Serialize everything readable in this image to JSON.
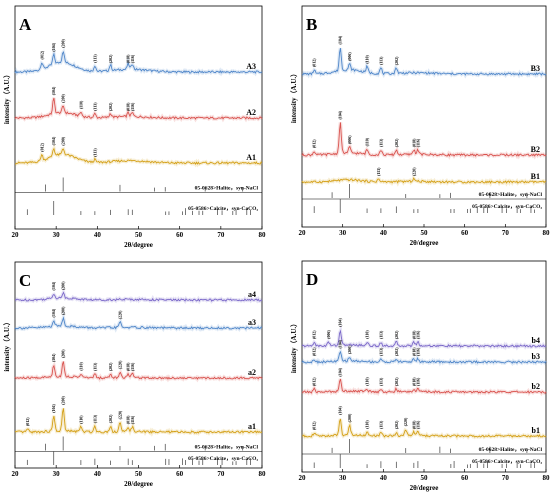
{
  "chart_data": [
    {
      "panel": "A",
      "type": "line",
      "xlabel": "2θ/degree",
      "ylabel": "intensity（A.U.）",
      "xlim": [
        20,
        80
      ],
      "xticks": [
        "20",
        "30",
        "40",
        "50",
        "60",
        "70",
        "80"
      ],
      "series": [
        {
          "name": "A3",
          "color": "#4f86c9",
          "broad_hump": 0.9,
          "peaks": [
            {
              "x": 26.5,
              "h": 0.35,
              "label": "(012)"
            },
            {
              "x": 29.4,
              "h": 0.5,
              "label": "(104)"
            },
            {
              "x": 31.7,
              "h": 0.6,
              "label": "(200)"
            },
            {
              "x": 39.4,
              "h": 0.3,
              "label": "(113)"
            },
            {
              "x": 43.2,
              "h": 0.3,
              "label": "(202)"
            },
            {
              "x": 47.5,
              "h": 0.3,
              "label": "(018)"
            },
            {
              "x": 48.5,
              "h": 0.3,
              "label": "(116)"
            }
          ]
        },
        {
          "name": "A2",
          "color": "#d9534f",
          "broad_hump": 0.5,
          "peaks": [
            {
              "x": 29.4,
              "h": 0.8,
              "label": "(104)"
            },
            {
              "x": 31.7,
              "h": 0.35,
              "label": "(200)"
            },
            {
              "x": 36.0,
              "h": 0.2,
              "label": "(110)"
            },
            {
              "x": 39.4,
              "h": 0.2,
              "label": "(113)"
            },
            {
              "x": 43.2,
              "h": 0.2,
              "label": "(202)"
            },
            {
              "x": 47.5,
              "h": 0.2,
              "label": "(018)"
            },
            {
              "x": 48.5,
              "h": 0.2,
              "label": "(116)"
            }
          ]
        },
        {
          "name": "A1",
          "color": "#d4a017",
          "broad_hump": 0.8,
          "peaks": [
            {
              "x": 26.5,
              "h": 0.3,
              "label": "(012)"
            },
            {
              "x": 29.4,
              "h": 0.4,
              "label": "(104)"
            },
            {
              "x": 31.7,
              "h": 0.3,
              "label": "(200)"
            },
            {
              "x": 39.4,
              "h": 0.15,
              "label": "(113)"
            }
          ]
        }
      ],
      "reference_patterns": [
        {
          "label": "05-0628>Halite，syn-NaCl",
          "lines": [
            27.4,
            31.7,
            45.5,
            53.9,
            56.5,
            66.2,
            75.3
          ]
        },
        {
          "label": "05-0586>Calcite，syn-CaCO₃",
          "lines": [
            23.0,
            29.4,
            36.0,
            39.4,
            43.2,
            47.5,
            48.5,
            56.6,
            57.4,
            60.7,
            61.4,
            63.1,
            64.7,
            65.6,
            69.2,
            70.3,
            72.9,
            73.7,
            76.3,
            77.2
          ]
        }
      ]
    },
    {
      "panel": "B",
      "type": "line",
      "xlabel": "2θ/degree",
      "ylabel": "intensity（A.U.）",
      "xlim": [
        20,
        80
      ],
      "xticks": [
        "20",
        "30",
        "40",
        "50",
        "60",
        "70",
        "80"
      ],
      "series": [
        {
          "name": "B3",
          "color": "#4f86c9",
          "broad_hump": 0.4,
          "peaks": [
            {
              "x": 23.0,
              "h": 0.2,
              "label": "(012)"
            },
            {
              "x": 29.4,
              "h": 1.2,
              "label": "(104)"
            },
            {
              "x": 31.7,
              "h": 0.3,
              "label": "(006)"
            },
            {
              "x": 36.0,
              "h": 0.3,
              "label": "(110)"
            },
            {
              "x": 39.4,
              "h": 0.3,
              "label": "(113)"
            },
            {
              "x": 43.2,
              "h": 0.3,
              "label": "(202)"
            }
          ]
        },
        {
          "name": "B2",
          "color": "#d9534f",
          "broad_hump": 0.2,
          "peaks": [
            {
              "x": 23.0,
              "h": 0.2,
              "label": "(012)"
            },
            {
              "x": 29.4,
              "h": 1.6,
              "label": "(104)"
            },
            {
              "x": 31.7,
              "h": 0.3,
              "label": "(006)"
            },
            {
              "x": 36.0,
              "h": 0.25,
              "label": "(110)"
            },
            {
              "x": 39.4,
              "h": 0.25,
              "label": "(113)"
            },
            {
              "x": 43.2,
              "h": 0.25,
              "label": "(202)"
            },
            {
              "x": 47.5,
              "h": 0.25,
              "label": "(018)"
            },
            {
              "x": 48.5,
              "h": 0.25,
              "label": "(116)"
            }
          ]
        },
        {
          "name": "B1",
          "color": "#d4a017",
          "broad_hump": 0.2,
          "peaks": [
            {
              "x": 38.8,
              "h": 0.15,
              "label": "(113)"
            },
            {
              "x": 47.5,
              "h": 0.15,
              "label": "(220)"
            }
          ]
        }
      ],
      "reference_patterns": [
        {
          "label": "05-0628>Halite，syn-NaCl",
          "lines": [
            27.4,
            31.7,
            45.5,
            53.9,
            56.5,
            66.2,
            75.3
          ]
        },
        {
          "label": "05-0586>Calcite，syn-CaCO₃",
          "lines": [
            23.0,
            29.4,
            36.0,
            39.4,
            43.2,
            47.5,
            48.5,
            56.6,
            57.4,
            60.7,
            61.4,
            63.1,
            64.7,
            65.6,
            69.2,
            70.3,
            72.9,
            73.7,
            76.3,
            77.2
          ]
        }
      ]
    },
    {
      "panel": "C",
      "type": "line",
      "xlabel": "2θ/degree",
      "ylabel": "intensity（A.U.）",
      "xlim": [
        20,
        80
      ],
      "xticks": [
        "20",
        "30",
        "40",
        "50",
        "60",
        "70",
        "80"
      ],
      "series": [
        {
          "name": "a4",
          "color": "#7b68c9",
          "broad_hump": 0.2,
          "peaks": [
            {
              "x": 29.4,
              "h": 0.25,
              "label": "(104)"
            },
            {
              "x": 31.7,
              "h": 0.25,
              "label": "(200)"
            }
          ]
        },
        {
          "name": "a3",
          "color": "#4f86c9",
          "broad_hump": 0.2,
          "peaks": [
            {
              "x": 29.4,
              "h": 0.3,
              "label": "(104)"
            },
            {
              "x": 31.7,
              "h": 0.4,
              "label": "(200)"
            },
            {
              "x": 45.5,
              "h": 0.3,
              "label": "(220)"
            }
          ]
        },
        {
          "name": "a2",
          "color": "#d9534f",
          "broad_hump": 0.15,
          "peaks": [
            {
              "x": 29.4,
              "h": 0.6,
              "label": "(104)"
            },
            {
              "x": 31.7,
              "h": 0.8,
              "label": "(200)"
            },
            {
              "x": 36.0,
              "h": 0.2,
              "label": "(110)"
            },
            {
              "x": 39.4,
              "h": 0.2,
              "label": "(113)"
            },
            {
              "x": 43.2,
              "h": 0.2,
              "label": "(202)"
            },
            {
              "x": 45.5,
              "h": 0.3,
              "label": "(220)"
            },
            {
              "x": 47.5,
              "h": 0.2,
              "label": "(018)"
            },
            {
              "x": 48.5,
              "h": 0.2,
              "label": "(116)"
            }
          ]
        },
        {
          "name": "a1",
          "color": "#d4a017",
          "broad_hump": 0.1,
          "peaks": [
            {
              "x": 23.0,
              "h": 0.15,
              "label": "(012)"
            },
            {
              "x": 29.4,
              "h": 0.8,
              "label": "(104)"
            },
            {
              "x": 31.7,
              "h": 1.2,
              "label": "(200)"
            },
            {
              "x": 36.0,
              "h": 0.25,
              "label": "(110)"
            },
            {
              "x": 39.4,
              "h": 0.3,
              "label": "(113)"
            },
            {
              "x": 43.2,
              "h": 0.3,
              "label": "(202)"
            },
            {
              "x": 45.5,
              "h": 0.5,
              "label": "(220)"
            },
            {
              "x": 47.5,
              "h": 0.25,
              "label": "(018)"
            },
            {
              "x": 48.5,
              "h": 0.25,
              "label": "(116)"
            }
          ]
        }
      ],
      "reference_patterns": [
        {
          "label": "05-0628>Halite，syn-NaCl",
          "lines": [
            27.4,
            31.7,
            45.5,
            53.9,
            56.5,
            66.2,
            75.3
          ]
        },
        {
          "label": "05-0586>Calcite，syn-CaCO₃",
          "lines": [
            23.0,
            29.4,
            36.0,
            39.4,
            43.2,
            47.5,
            48.5,
            56.6,
            57.4,
            60.7,
            61.4,
            63.1,
            64.7,
            65.6,
            69.2,
            70.3,
            72.9,
            73.7,
            76.3,
            77.2
          ]
        }
      ]
    },
    {
      "panel": "D",
      "type": "line",
      "xlabel": "2θ/degree",
      "ylabel": "intensity（A.U.）",
      "xlim": [
        20,
        80
      ],
      "xticks": [
        "20",
        "30",
        "40",
        "50",
        "60",
        "70",
        "80"
      ],
      "series": [
        {
          "name": "b4",
          "color": "#7b68c9",
          "broad_hump": 0.1,
          "peaks": [
            {
              "x": 23.0,
              "h": 0.2,
              "label": "(012)"
            },
            {
              "x": 26.5,
              "h": 0.2,
              "label": "(006)"
            },
            {
              "x": 29.4,
              "h": 0.8,
              "label": "(104)"
            },
            {
              "x": 36.0,
              "h": 0.2,
              "label": "(110)"
            },
            {
              "x": 39.4,
              "h": 0.2,
              "label": "(113)"
            },
            {
              "x": 43.2,
              "h": 0.2,
              "label": "(202)"
            },
            {
              "x": 47.5,
              "h": 0.2,
              "label": "(018)"
            },
            {
              "x": 48.5,
              "h": 0.2,
              "label": "(116)"
            }
          ]
        },
        {
          "name": "b3",
          "color": "#4f86c9",
          "broad_hump": 0.1,
          "peaks": [
            {
              "x": 23.0,
              "h": 0.15,
              "label": "(012)"
            },
            {
              "x": 29.4,
              "h": 0.5,
              "label": "(104)"
            },
            {
              "x": 31.7,
              "h": 0.2,
              "label": "(200)"
            },
            {
              "x": 39.4,
              "h": 0.15,
              "label": "(113)"
            },
            {
              "x": 43.2,
              "h": 0.15,
              "label": "(202)"
            },
            {
              "x": 47.5,
              "h": 0.15,
              "label": "(018)"
            },
            {
              "x": 48.5,
              "h": 0.15,
              "label": "(116)"
            }
          ]
        },
        {
          "name": "b2",
          "color": "#d9534f",
          "broad_hump": 0.1,
          "peaks": [
            {
              "x": 23.0,
              "h": 0.15,
              "label": "(012)"
            },
            {
              "x": 29.4,
              "h": 0.6,
              "label": "(104)"
            },
            {
              "x": 36.0,
              "h": 0.15,
              "label": "(110)"
            },
            {
              "x": 39.4,
              "h": 0.15,
              "label": "(113)"
            },
            {
              "x": 43.2,
              "h": 0.15,
              "label": "(202)"
            },
            {
              "x": 47.5,
              "h": 0.15,
              "label": "(018)"
            },
            {
              "x": 48.5,
              "h": 0.15,
              "label": "(116)"
            }
          ]
        },
        {
          "name": "b1",
          "color": "#d4a017",
          "broad_hump": 0.1,
          "peaks": [
            {
              "x": 23.0,
              "h": 0.15,
              "label": "(012)"
            },
            {
              "x": 29.4,
              "h": 0.9,
              "label": "(104)"
            },
            {
              "x": 31.7,
              "h": 0.5,
              "label": "(200)"
            },
            {
              "x": 36.0,
              "h": 0.2,
              "label": "(110)"
            },
            {
              "x": 39.4,
              "h": 0.2,
              "label": "(113)"
            },
            {
              "x": 43.2,
              "h": 0.2,
              "label": "(202)"
            },
            {
              "x": 45.5,
              "h": 0.35,
              "label": "(220)"
            },
            {
              "x": 47.5,
              "h": 0.2,
              "label": "(018)"
            },
            {
              "x": 48.5,
              "h": 0.2,
              "label": "(116)"
            }
          ]
        }
      ],
      "reference_patterns": [
        {
          "label": "05-0628>Halite，syn-NaCl",
          "lines": [
            27.4,
            31.7,
            45.5,
            53.9,
            56.5,
            66.2,
            75.3
          ]
        },
        {
          "label": "05-0586>Calcite，syn-CaCO₃",
          "lines": [
            23.0,
            29.4,
            36.0,
            39.4,
            43.2,
            47.5,
            48.5,
            56.6,
            57.4,
            60.7,
            61.4,
            63.1,
            64.7,
            65.6,
            69.2,
            70.3,
            72.9,
            73.7,
            76.3,
            77.2
          ]
        }
      ]
    }
  ]
}
